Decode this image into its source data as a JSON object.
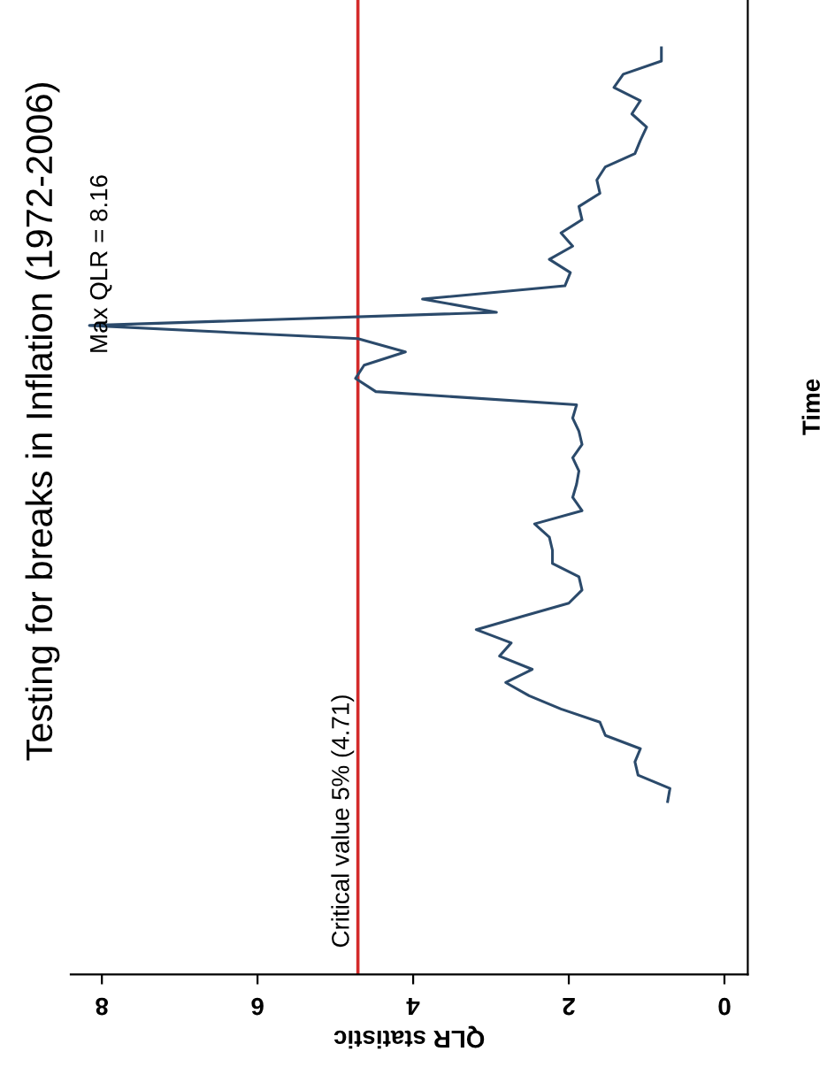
{
  "chart_data": {
    "type": "line",
    "orientation": "horizontal",
    "title": "Testing for breaks in Inflation (1972-2006)",
    "xlabel": "QLR statistic",
    "ylabel": "Time",
    "categories": [
      null,
      null,
      null,
      null,
      null,
      null,
      null,
      null,
      null,
      null,
      null,
      null,
      null,
      null,
      null,
      null,
      null,
      null,
      null,
      null,
      null,
      null,
      null,
      null,
      null,
      null,
      null,
      null,
      null,
      null,
      null,
      null,
      null,
      null,
      null,
      null,
      null,
      null,
      null,
      null,
      null,
      null,
      null,
      null,
      null,
      null,
      null,
      null,
      null,
      null,
      null,
      null,
      null,
      null,
      null,
      null,
      null,
      null
    ],
    "series": [
      {
        "color": "#2b4a6b",
        "values": [
          0.81,
          0.81,
          1.3,
          1.42,
          1.08,
          1.19,
          1.0,
          1.08,
          1.15,
          1.53,
          1.64,
          1.6,
          1.87,
          1.83,
          2.1,
          1.95,
          2.25,
          1.98,
          2.05,
          3.88,
          2.93,
          8.16,
          4.71,
          4.1,
          4.63,
          4.74,
          4.48,
          1.9,
          1.95,
          1.87,
          1.83,
          1.95,
          1.87,
          1.9,
          1.95,
          1.83,
          2.44,
          2.25,
          2.21,
          2.21,
          1.87,
          1.83,
          2.0,
          2.6,
          3.19,
          2.74,
          2.89,
          2.47,
          2.81,
          2.51,
          2.1,
          1.6,
          1.53,
          1.08,
          1.15,
          1.11,
          0.7,
          0.73
        ]
      }
    ],
    "xlim": [
      8.4,
      -0.3
    ],
    "xticks": [
      8,
      6,
      4,
      2,
      0
    ],
    "ref_lines": [
      {
        "axis": "x",
        "value": 4.71,
        "label": "Critical value 5% (4.71)",
        "color": "#d42a2a"
      }
    ],
    "annotations": [
      "Max QLR = 8.16"
    ],
    "tick_labels": "x",
    "grid": false,
    "legend": false
  }
}
